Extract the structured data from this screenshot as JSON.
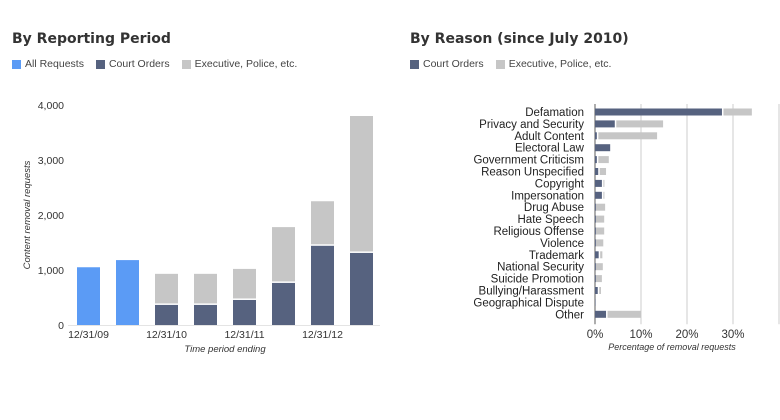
{
  "colors": {
    "all_requests": "#5b9bf5",
    "court_orders": "#56627f",
    "executive": "#c6c6c6",
    "gridline": "#dddddd",
    "axis": "#555555"
  },
  "chart_data": [
    {
      "type": "bar",
      "stacked": true,
      "title": "By Reporting Period",
      "legend": [
        "All Requests",
        "Court Orders",
        "Executive, Police, etc."
      ],
      "legend_position": "top-left",
      "xlabel": "Time period ending",
      "ylabel": "Content removal requests",
      "ylim": [
        0,
        4000
      ],
      "yticks": [
        0,
        1000,
        2000,
        3000,
        4000
      ],
      "ytick_labels": [
        "0",
        "1,000",
        "2,000",
        "3,000",
        "4,000"
      ],
      "xtick_labels": [
        "12/31/09",
        "",
        "12/31/10",
        "",
        "12/31/11",
        "",
        "12/31/12",
        ""
      ],
      "grid": false,
      "series": [
        {
          "name": "All Requests",
          "values": [
            1050,
            1180,
            null,
            null,
            null,
            null,
            null,
            null
          ]
        },
        {
          "name": "Court Orders",
          "values": [
            null,
            null,
            365,
            365,
            455,
            765,
            1440,
            1310
          ]
        },
        {
          "name": "Executive, Police, etc.",
          "values": [
            null,
            null,
            565,
            565,
            565,
            1015,
            810,
            2490
          ]
        }
      ]
    },
    {
      "type": "bar",
      "orientation": "horizontal",
      "title": "By Reason (since July 2010)",
      "legend": [
        "Court Orders",
        "Executive, Police, etc."
      ],
      "legend_position": "top-left",
      "xlabel": "Percentage of removal requests",
      "ylabel": "",
      "xlim": [
        0,
        40
      ],
      "xticks": [
        0,
        10,
        20,
        30,
        40
      ],
      "xtick_labels": [
        "0%",
        "10%",
        "20%",
        "30%",
        ""
      ],
      "grid": true,
      "categories": [
        "Defamation",
        "Privacy and Security",
        "Adult Content",
        "Electoral Law",
        "Government Criticism",
        "Reason Unspecified",
        "Copyright",
        "Impersonation",
        "Drug Abuse",
        "Hate Speech",
        "Religious Offense",
        "Violence",
        "Trademark",
        "National Security",
        "Suicide Promotion",
        "Bullying/Harassment",
        "Geographical Dispute",
        "Other"
      ],
      "series": [
        {
          "name": "Court Orders",
          "values": [
            27.6,
            4.3,
            0.4,
            3.3,
            0.4,
            0.7,
            1.5,
            1.5,
            0.2,
            0.2,
            0.2,
            0.2,
            0.8,
            0.2,
            0.2,
            0.6,
            0.1,
            2.4
          ]
        },
        {
          "name": "Executive, Police, etc.",
          "values": [
            6.5,
            10.5,
            13.1,
            0.0,
            2.6,
            1.7,
            0.5,
            0.5,
            2.0,
            1.8,
            1.8,
            1.6,
            0.8,
            1.5,
            1.3,
            0.7,
            0.0,
            7.6
          ]
        }
      ]
    }
  ]
}
